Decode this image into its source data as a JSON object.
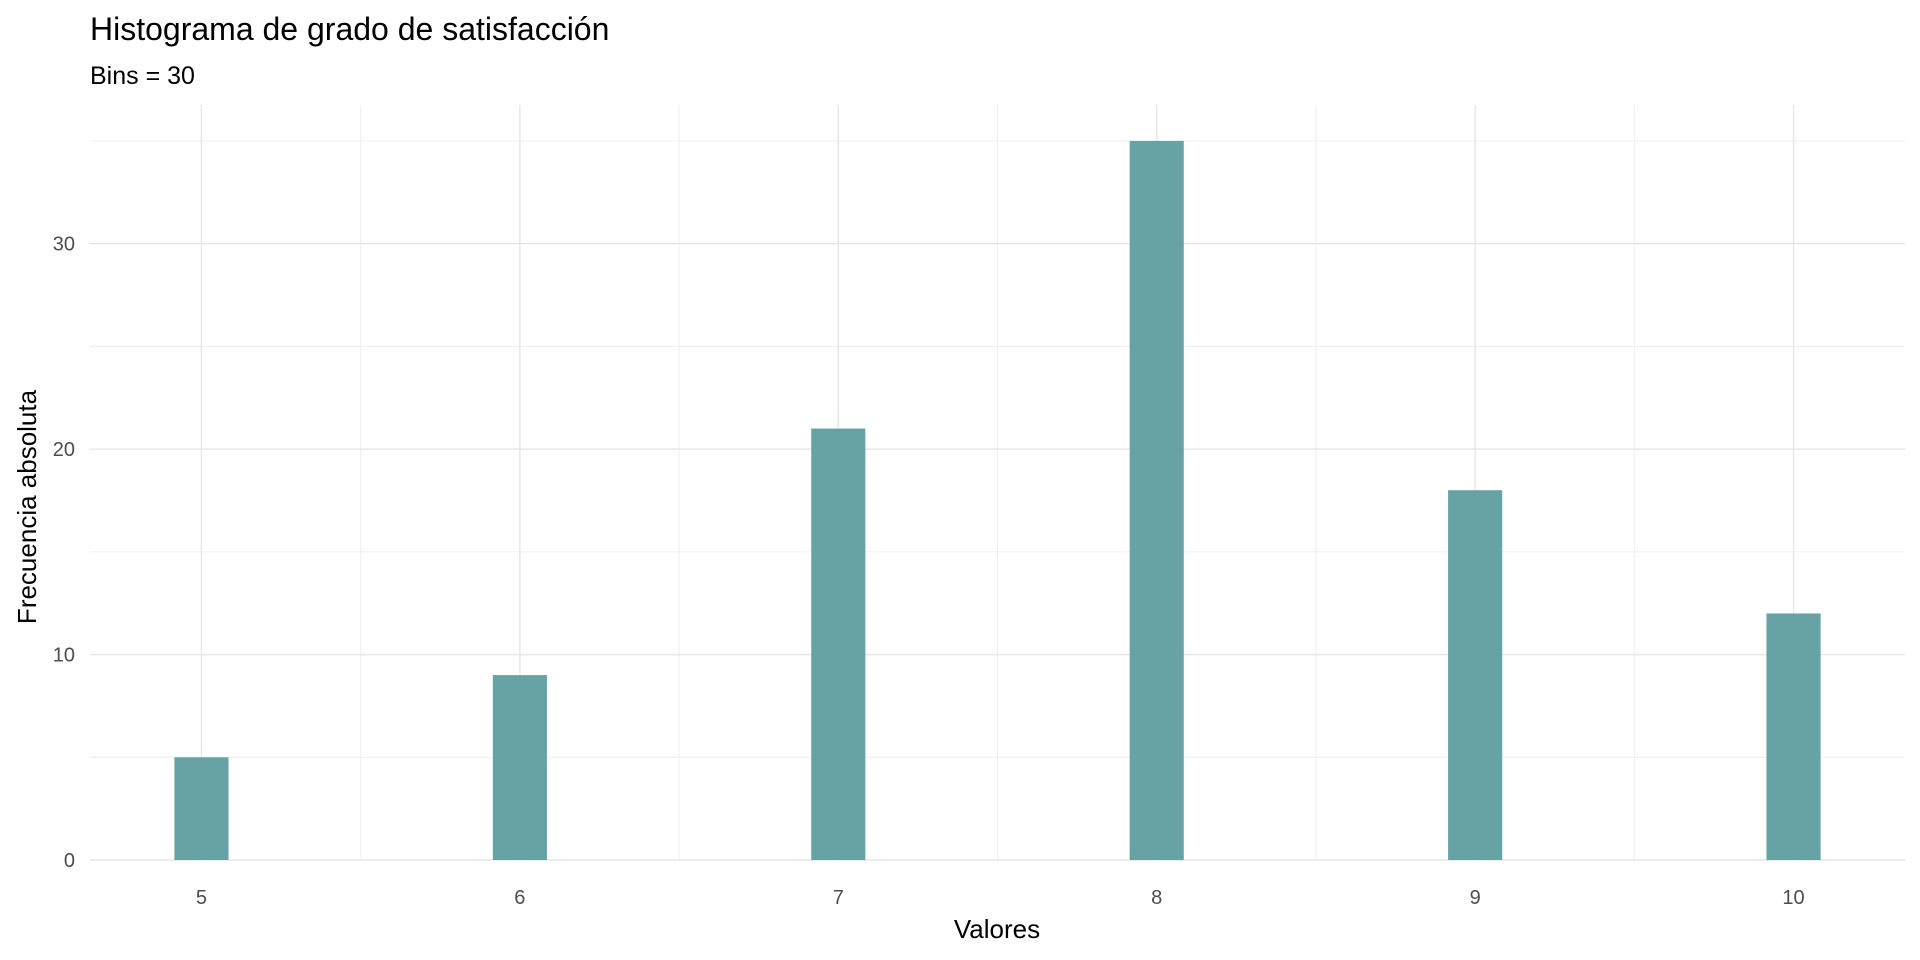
{
  "chart_data": {
    "type": "bar",
    "title": "Histograma de grado de satisfacción",
    "subtitle": "Bins = 30",
    "xlabel": "Valores",
    "ylabel": "Frecuencia absoluta",
    "categories": [
      5,
      6,
      7,
      8,
      9,
      10
    ],
    "values": [
      5,
      9,
      21,
      35,
      18,
      12
    ],
    "x_ticks": [
      "5",
      "6",
      "7",
      "8",
      "9",
      "10"
    ],
    "y_ticks": [
      "0",
      "10",
      "20",
      "30"
    ],
    "xlim": [
      4.65,
      10.35
    ],
    "ylim": [
      0,
      36.75
    ],
    "bin_width": 0.17,
    "grid": true,
    "bar_color": "#5f9ea0"
  }
}
